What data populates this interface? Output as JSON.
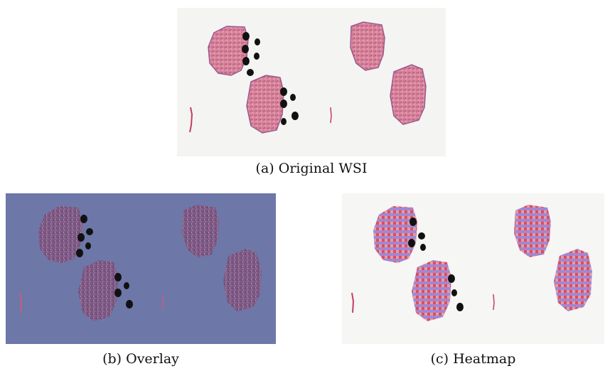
{
  "figure": {
    "panels": [
      {
        "id": "a",
        "caption": "(a) Original WSI"
      },
      {
        "id": "b",
        "caption": "(b) Overlay"
      },
      {
        "id": "c",
        "caption": "(c) Heatmap"
      }
    ],
    "colors": {
      "background_slide": "#f4f4f2",
      "tissue_pink": "#d97a94",
      "tissue_purple": "#8a4f86",
      "overlay_tint": "#6d77a8",
      "heat_red": "#d63a4a",
      "heat_blue": "#8a8fe0",
      "ink_marks": "#111111"
    }
  }
}
